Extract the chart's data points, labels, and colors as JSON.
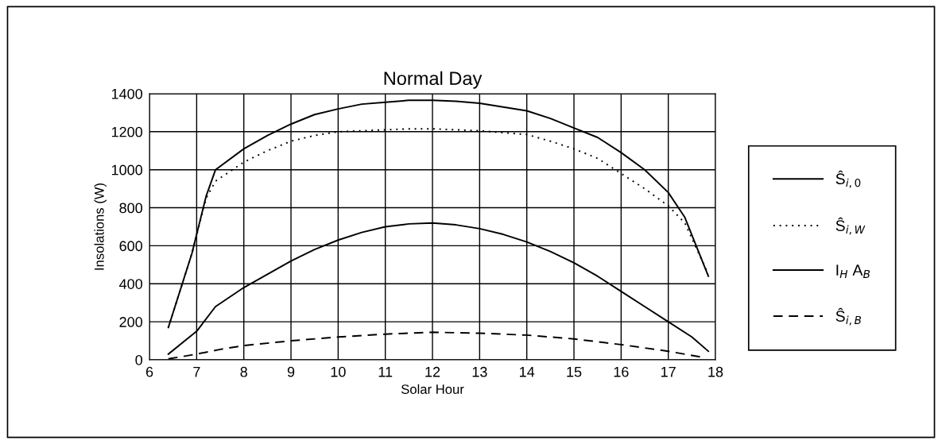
{
  "chart_data": {
    "type": "line",
    "title": "Normal Day",
    "xlabel": "Solar Hour",
    "ylabel": "Insolations (W)",
    "xlim": [
      6,
      18
    ],
    "xticks": [
      6,
      7,
      8,
      9,
      10,
      11,
      12,
      13,
      14,
      15,
      16,
      17,
      18
    ],
    "ylim": [
      0,
      1400
    ],
    "yticks": [
      0,
      200,
      400,
      600,
      800,
      1000,
      1200,
      1400
    ],
    "grid": true,
    "legend": "right",
    "marker": "none",
    "series": [
      {
        "name": "Ŝ$_{i,0}$",
        "color": "#000000",
        "line_style": "solid",
        "x": [
          6.4,
          6.9,
          7.2,
          7.4,
          8,
          8.5,
          9,
          9.5,
          10,
          10.5,
          11,
          11.5,
          12,
          12.5,
          13,
          13.5,
          14,
          14.5,
          15,
          15.5,
          16,
          16.5,
          17,
          17.35,
          17.85
        ],
        "values": [
          170,
          560,
          860,
          1000,
          1110,
          1180,
          1240,
          1290,
          1320,
          1345,
          1355,
          1365,
          1365,
          1360,
          1350,
          1330,
          1310,
          1270,
          1220,
          1170,
          1090,
          1000,
          880,
          750,
          440
        ]
      },
      {
        "name": "Ŝ$_{i,W}$",
        "color": "#000000",
        "line_style": "dotted",
        "x": [
          6.4,
          6.9,
          7.2,
          7.4,
          8,
          8.5,
          9,
          9.5,
          10,
          10.5,
          11,
          11.5,
          12,
          12.5,
          13,
          13.5,
          14,
          14.5,
          15,
          15.5,
          16,
          16.5,
          17,
          17.35,
          17.85
        ],
        "values": [
          170,
          560,
          850,
          940,
          1040,
          1100,
          1150,
          1180,
          1200,
          1205,
          1210,
          1215,
          1215,
          1210,
          1205,
          1195,
          1185,
          1150,
          1110,
          1060,
          980,
          900,
          810,
          720,
          450
        ]
      },
      {
        "name": "I$_{H}$ A$_{B}$",
        "color": "#000000",
        "line_style": "solid",
        "x": [
          6.4,
          7,
          7.4,
          8,
          8.5,
          9,
          9.5,
          10,
          10.5,
          11,
          11.5,
          12,
          12.5,
          13,
          13.5,
          14,
          14.5,
          15,
          15.5,
          16,
          16.5,
          17,
          17.5,
          17.85
        ],
        "values": [
          30,
          150,
          280,
          380,
          450,
          520,
          580,
          630,
          670,
          700,
          715,
          720,
          710,
          690,
          660,
          620,
          570,
          510,
          440,
          360,
          280,
          200,
          120,
          45
        ]
      },
      {
        "name": "Ŝ$_{i,B}$",
        "color": "#000000",
        "line_style": "dashed",
        "x": [
          6.4,
          7,
          7.5,
          8,
          9,
          10,
          11,
          12,
          13,
          14,
          15,
          16,
          17,
          17.8
        ],
        "values": [
          5,
          30,
          55,
          75,
          100,
          120,
          135,
          145,
          140,
          130,
          110,
          80,
          45,
          10
        ]
      }
    ]
  }
}
